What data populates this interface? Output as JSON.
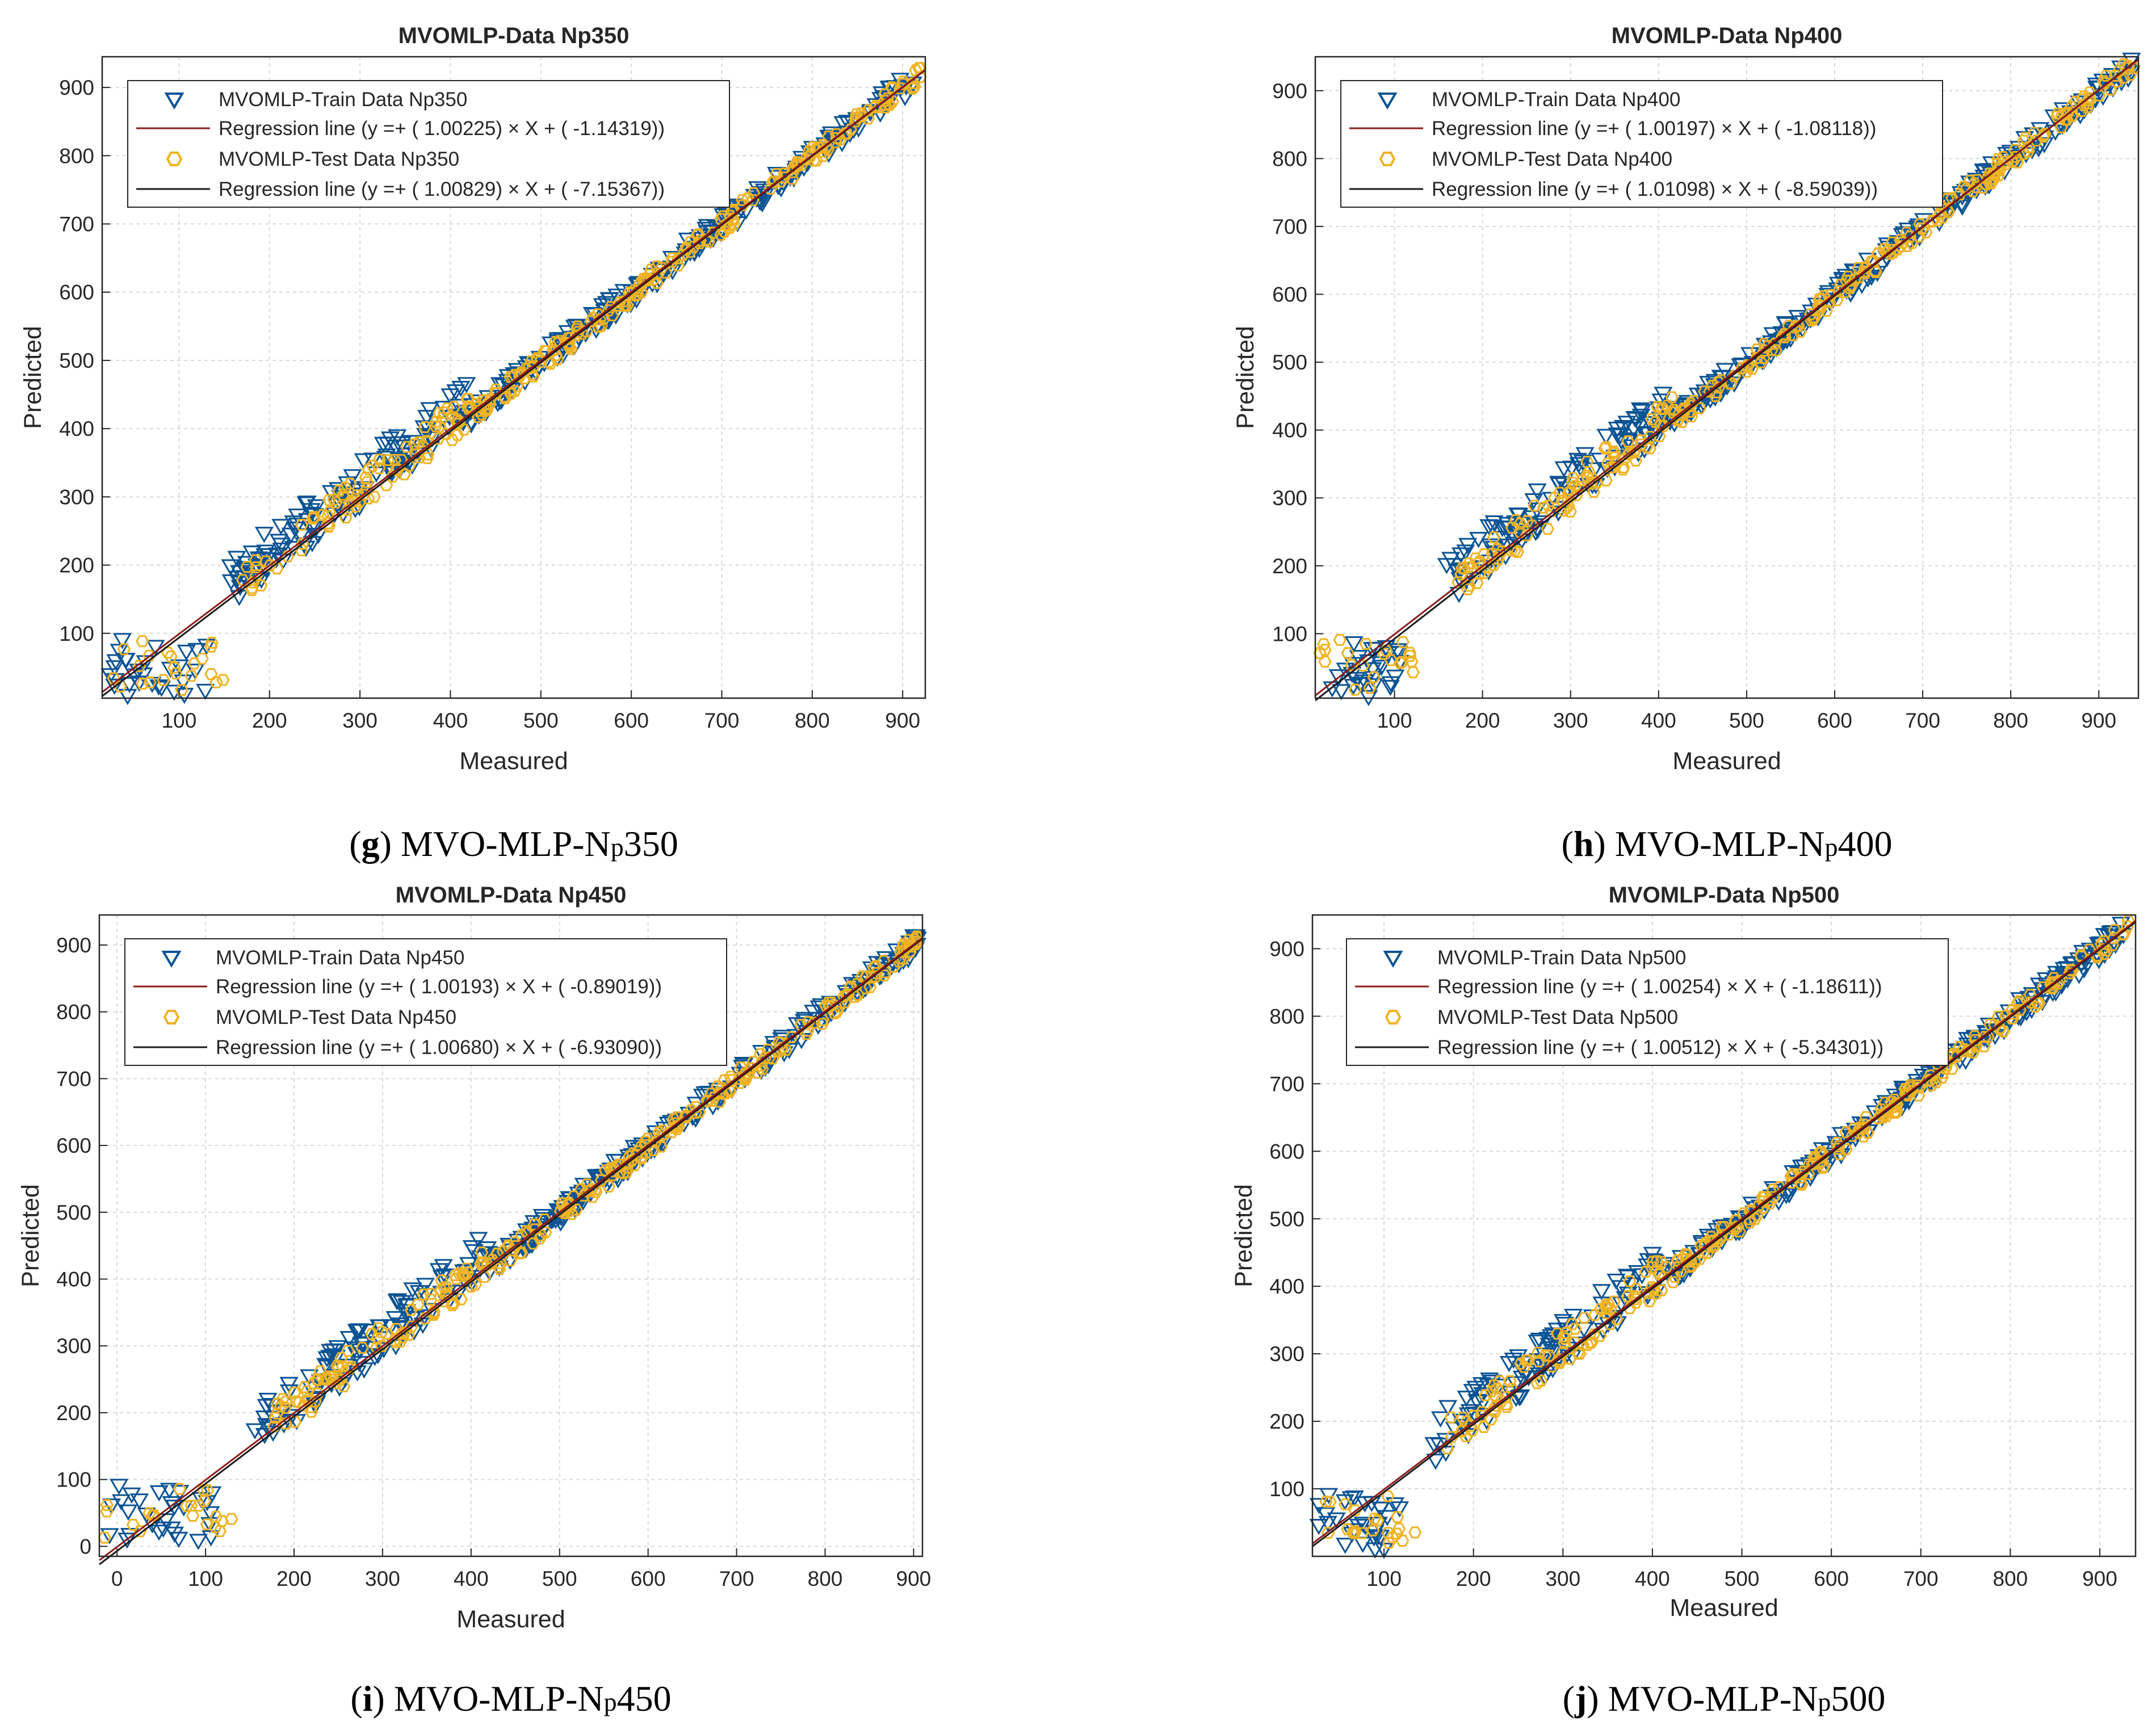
{
  "colors": {
    "train_marker": "#0b5394",
    "test_marker": "#f0b323",
    "train_line": "#8b1a1a",
    "test_line": "#1a1a1a",
    "grid": "#d9d9d9",
    "axis": "#262626"
  },
  "chart_data": [
    {
      "type": "scatter",
      "title": "MVOMLP-Data Np350",
      "xlabel": "Measured",
      "ylabel": "Predicted",
      "xlim": [
        15,
        925
      ],
      "ylim": [
        5,
        945
      ],
      "xticks": [
        100,
        200,
        300,
        400,
        500,
        600,
        700,
        800,
        900
      ],
      "yticks": [
        100,
        200,
        300,
        400,
        500,
        600,
        700,
        800,
        900
      ],
      "grid": true,
      "legend_position": "top-left",
      "legend": [
        "MVOMLP-Train Data Np350",
        "Regression line (y =+ ( 1.00225) × X + ( -1.14319))",
        "MVOMLP-Test Data Np350",
        "Regression line (y =+ ( 1.00829) × X + ( -7.15367))"
      ],
      "regression": [
        {
          "series": "train",
          "slope": 1.00225,
          "intercept": -1.14319
        },
        {
          "series": "test",
          "slope": 1.00829,
          "intercept": -7.15367
        }
      ],
      "cluster": {
        "x_min": 20,
        "x_max": 150,
        "y_max": 95
      },
      "caption": {
        "letter": "g",
        "prefix": "MVO-MLP-N",
        "sub": "p",
        "suffix": "350"
      }
    },
    {
      "type": "scatter",
      "title": "MVOMLP-Data Np400",
      "xlabel": "Measured",
      "ylabel": "Predicted",
      "xlim": [
        10,
        945
      ],
      "ylim": [
        5,
        950
      ],
      "xticks": [
        100,
        200,
        300,
        400,
        500,
        600,
        700,
        800,
        900
      ],
      "yticks": [
        100,
        200,
        300,
        400,
        500,
        600,
        700,
        800,
        900
      ],
      "grid": true,
      "legend_position": "top-left",
      "legend": [
        "MVOMLP-Train Data Np400",
        "Regression line (y =+ ( 1.00197) × X + ( -1.08118))",
        "MVOMLP-Test Data Np400",
        "Regression line (y =+ ( 1.01098) × X + ( -8.59039))"
      ],
      "regression": [
        {
          "series": "train",
          "slope": 1.00197,
          "intercept": -1.08118
        },
        {
          "series": "test",
          "slope": 1.01098,
          "intercept": -8.59039
        }
      ],
      "cluster": {
        "x_min": 15,
        "x_max": 125,
        "y_max": 95
      },
      "caption": {
        "letter": "h",
        "prefix": "MVO-MLP-N",
        "sub": "p",
        "suffix": "400"
      }
    },
    {
      "type": "scatter",
      "title": "MVOMLP-Data Np450",
      "xlabel": "Measured",
      "ylabel": "Predicted",
      "xlim": [
        -20,
        910
      ],
      "ylim": [
        -15,
        945
      ],
      "xticks": [
        0,
        100,
        200,
        300,
        400,
        500,
        600,
        700,
        800,
        900
      ],
      "yticks": [
        0,
        100,
        200,
        300,
        400,
        500,
        600,
        700,
        800,
        900
      ],
      "grid": true,
      "legend_position": "top-left",
      "legend": [
        "MVOMLP-Train Data Np450",
        "Regression line (y =+ ( 1.00193) × X + ( -0.89019))",
        "MVOMLP-Test Data Np450",
        "Regression line (y =+ ( 1.00680) × X + ( -6.93090))"
      ],
      "regression": [
        {
          "series": "train",
          "slope": 1.00193,
          "intercept": -0.89019
        },
        {
          "series": "test",
          "slope": 1.0068,
          "intercept": -6.9309
        }
      ],
      "cluster": {
        "x_min": -15,
        "x_max": 135,
        "y_max": 95
      },
      "caption": {
        "letter": "i",
        "prefix": "MVO-MLP-N",
        "sub": "p",
        "suffix": "450"
      }
    },
    {
      "type": "scatter",
      "title": "MVOMLP-Data Np500",
      "xlabel": "Measured",
      "ylabel": "Predicted",
      "xlim": [
        20,
        940
      ],
      "ylim": [
        0,
        950
      ],
      "xticks": [
        100,
        200,
        300,
        400,
        500,
        600,
        700,
        800,
        900
      ],
      "yticks": [
        100,
        200,
        300,
        400,
        500,
        600,
        700,
        800,
        900
      ],
      "grid": true,
      "legend_position": "top-left",
      "legend": [
        "MVOMLP-Train Data Np500",
        "Regression line (y =+ ( 1.00254) × X + ( -1.18611))",
        "MVOMLP-Test Data Np500",
        "Regression line (y =+ ( 1.00512) × X + ( -5.34301))"
      ],
      "regression": [
        {
          "series": "train",
          "slope": 1.00254,
          "intercept": -1.18611
        },
        {
          "series": "test",
          "slope": 1.00512,
          "intercept": -5.34301
        }
      ],
      "cluster": {
        "x_min": 25,
        "x_max": 135,
        "y_max": 95
      },
      "caption": {
        "letter": "j",
        "prefix": "MVO-MLP-N",
        "sub": "p",
        "suffix": "500"
      }
    }
  ]
}
